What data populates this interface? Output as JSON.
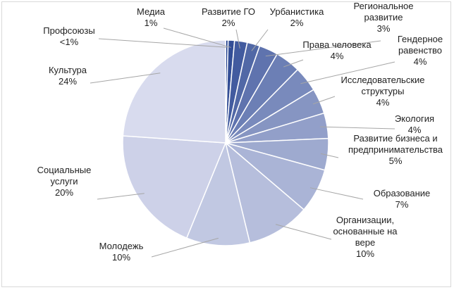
{
  "chart_data": {
    "type": "pie",
    "title": "",
    "slices": [
      {
        "label": "Профсоюзы",
        "value": 0.4,
        "pct_label": "<1%"
      },
      {
        "label": "Медиа",
        "value": 1,
        "pct_label": "1%"
      },
      {
        "label": "Развитие ГО",
        "value": 2,
        "pct_label": "2%"
      },
      {
        "label": "Урбанистика",
        "value": 2,
        "pct_label": "2%"
      },
      {
        "label": "Региональное развитие",
        "value": 3,
        "pct_label": "3%"
      },
      {
        "label": "Права человека",
        "value": 4,
        "pct_label": "4%"
      },
      {
        "label": "Гендерное равенство",
        "value": 4,
        "pct_label": "4%"
      },
      {
        "label": "Исследовательские структуры",
        "value": 4,
        "pct_label": "4%"
      },
      {
        "label": "Экология",
        "value": 4,
        "pct_label": "4%"
      },
      {
        "label": "Развитие бизнеса и предпринимательства",
        "value": 5,
        "pct_label": "5%"
      },
      {
        "label": "Образование",
        "value": 7,
        "pct_label": "7%"
      },
      {
        "label": "Организации, основанные на вере",
        "value": 10,
        "pct_label": "10%"
      },
      {
        "label": "Молодежь",
        "value": 10,
        "pct_label": "10%"
      },
      {
        "label": "Социальные услуги",
        "value": 20,
        "pct_label": "20%"
      },
      {
        "label": "Культура",
        "value": 24,
        "pct_label": "24%"
      }
    ],
    "legend": "none"
  }
}
